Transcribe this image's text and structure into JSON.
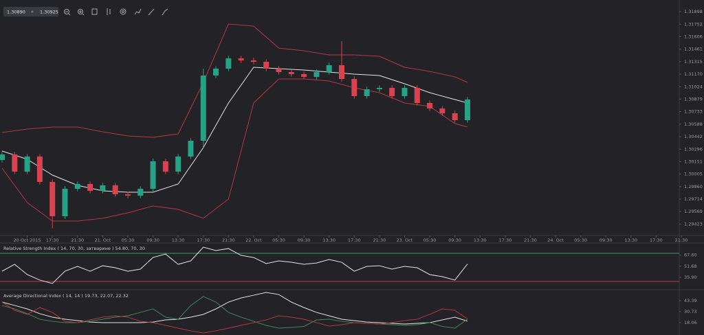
{
  "toolbar": {
    "prices": [
      "1.30890",
      "1.30925"
    ]
  },
  "chart_data": [
    {
      "type": "candlestick",
      "x": [
        0,
        2,
        4,
        6,
        8,
        10,
        12,
        14,
        16,
        18,
        20,
        22,
        24,
        26,
        28,
        30,
        32,
        34,
        36,
        38,
        40,
        42,
        44,
        46,
        48,
        50,
        52,
        54,
        56,
        58,
        60,
        62,
        64,
        66,
        68,
        70,
        72,
        74
      ],
      "open": [
        1.3017,
        1.30234,
        1.30034,
        1.3021,
        1.29914,
        1.29514,
        1.29834,
        1.2989,
        1.2981,
        1.29874,
        1.2977,
        1.29754,
        1.29834,
        1.30154,
        1.30034,
        1.3021,
        1.30394,
        1.31154,
        1.31234,
        1.31354,
        1.3133,
        1.31314,
        1.31234,
        1.31194,
        1.3117,
        1.31138,
        1.31194,
        1.31274,
        1.31114,
        1.30914,
        1.30994,
        1.3101,
        1.30914,
        1.3101,
        1.30834,
        1.3077,
        1.30714,
        1.30634
      ],
      "high": [
        1.30264,
        1.30264,
        1.3024,
        1.3024,
        1.29944,
        1.29864,
        1.2992,
        1.2992,
        1.29904,
        1.29904,
        1.298,
        1.29864,
        1.30184,
        1.30184,
        1.3024,
        1.30424,
        1.31234,
        1.31264,
        1.31384,
        1.31384,
        1.3136,
        1.31344,
        1.31264,
        1.31224,
        1.312,
        1.31224,
        1.31304,
        1.31554,
        1.31144,
        1.31024,
        1.3104,
        1.3104,
        1.3104,
        1.3104,
        1.30864,
        1.308,
        1.30744,
        1.30904
      ],
      "low": [
        1.3014,
        1.30004,
        1.30004,
        1.29884,
        1.29374,
        1.29484,
        1.29804,
        1.2978,
        1.2978,
        1.2974,
        1.29724,
        1.29724,
        1.29804,
        1.30004,
        1.30004,
        1.3018,
        1.30314,
        1.31124,
        1.31204,
        1.313,
        1.31284,
        1.31204,
        1.31164,
        1.3114,
        1.31108,
        1.31108,
        1.31164,
        1.31084,
        1.30884,
        1.30884,
        1.30964,
        1.30884,
        1.30884,
        1.30804,
        1.3074,
        1.30684,
        1.30604,
        1.30604
      ],
      "close": [
        1.30234,
        1.30034,
        1.3021,
        1.29914,
        1.29514,
        1.29834,
        1.2989,
        1.2981,
        1.29874,
        1.2977,
        1.29754,
        1.29834,
        1.30154,
        1.30034,
        1.3021,
        1.30394,
        1.31154,
        1.31234,
        1.31354,
        1.3133,
        1.31314,
        1.31234,
        1.31194,
        1.3117,
        1.31138,
        1.31194,
        1.31274,
        1.31114,
        1.30914,
        1.30994,
        1.3101,
        1.30914,
        1.3101,
        1.30834,
        1.3077,
        1.30714,
        1.30634,
        1.30874
      ],
      "up_color": "#26a386",
      "down_color": "#d9424f",
      "overlays": [
        {
          "color": "#b53a3f",
          "x": [
            0,
            4,
            8,
            12,
            16,
            20,
            24,
            28,
            32,
            36,
            40,
            44,
            48,
            52,
            56,
            60,
            64,
            68,
            72,
            74
          ],
          "values": [
            1.3049,
            1.3053,
            1.30554,
            1.30554,
            1.30498,
            1.3045,
            1.30434,
            1.30474,
            1.31074,
            1.31754,
            1.3173,
            1.31474,
            1.31442,
            1.31394,
            1.31394,
            1.31378,
            1.3125,
            1.31202,
            1.31138,
            1.31074
          ]
        },
        {
          "color": "#e6e6e6",
          "x": [
            0,
            4,
            8,
            12,
            16,
            20,
            24,
            28,
            32,
            36,
            40,
            44,
            48,
            52,
            56,
            60,
            64,
            68,
            72,
            74
          ],
          "values": [
            1.30274,
            1.30178,
            1.29994,
            1.29874,
            1.2981,
            1.29794,
            1.29794,
            1.2989,
            1.30314,
            1.30834,
            1.3125,
            1.31234,
            1.31218,
            1.31194,
            1.3117,
            1.31154,
            1.31058,
            1.30954,
            1.30874,
            1.30834
          ]
        },
        {
          "color": "#b53a3f",
          "x": [
            0,
            4,
            8,
            12,
            16,
            20,
            24,
            28,
            32,
            36,
            40,
            44,
            48,
            52,
            56,
            60,
            64,
            68,
            72,
            74
          ],
          "values": [
            1.30074,
            1.29674,
            1.29458,
            1.29458,
            1.2949,
            1.29554,
            1.29634,
            1.29594,
            1.2949,
            1.29714,
            1.30834,
            1.31114,
            1.31114,
            1.3109,
            1.3101,
            1.30954,
            1.30834,
            1.30794,
            1.30594,
            1.30554
          ]
        }
      ],
      "xlim": [
        0,
        108
      ],
      "ylim": [
        1.29274,
        1.32034
      ],
      "yticks": [
        1.31898,
        1.31752,
        1.31606,
        1.31461,
        1.31315,
        {
          "value": 1.3117,
          "label": "1.31170"
        },
        1.31024,
        1.30879,
        1.30733,
        1.30588,
        1.30442,
        1.30296,
        1.30151,
        1.30005,
        {
          "value": 1.2986,
          "label": "1.29860"
        },
        1.29714,
        1.29569,
        1.29423
      ],
      "xticks": [
        {
          "value": 4,
          "label": "20 Oct 2015"
        },
        {
          "value": 8,
          "label": "17:30"
        },
        {
          "value": 12,
          "label": "21:30"
        },
        {
          "value": 16,
          "label": "21. Oct"
        },
        {
          "value": 20,
          "label": "05:30"
        },
        {
          "value": 24,
          "label": "09:30"
        },
        {
          "value": 28,
          "label": "13:30"
        },
        {
          "value": 32,
          "label": "17:30"
        },
        {
          "value": 36,
          "label": "21:30"
        },
        {
          "value": 40,
          "label": "22. Oct"
        },
        {
          "value": 44,
          "label": "05:30"
        },
        {
          "value": 48,
          "label": "09:30"
        },
        {
          "value": 52,
          "label": "13:30"
        },
        {
          "value": 56,
          "label": "17:30"
        },
        {
          "value": 60,
          "label": "21:30"
        },
        {
          "value": 64,
          "label": "23. Oct"
        },
        {
          "value": 68,
          "label": "05:30"
        },
        {
          "value": 72,
          "label": "09:30"
        },
        {
          "value": 76,
          "label": "13:30"
        },
        {
          "value": 80,
          "label": "17:30"
        },
        {
          "value": 84,
          "label": "21:30"
        },
        {
          "value": 88,
          "label": "24. Oct"
        },
        {
          "value": 92,
          "label": "05:30"
        },
        {
          "value": 96,
          "label": "09:30"
        },
        {
          "value": 100,
          "label": "13:30"
        },
        {
          "value": 104,
          "label": "17:30"
        },
        {
          "value": 108,
          "label": "21:30"
        }
      ]
    },
    {
      "type": "line",
      "title": "Relative Strength Index ( 14, 70, 30, затварине ) 54.80, 70, 30",
      "x": [
        0,
        2,
        4,
        6,
        8,
        10,
        12,
        14,
        16,
        18,
        20,
        22,
        24,
        26,
        28,
        30,
        32,
        34,
        36,
        38,
        40,
        42,
        44,
        46,
        48,
        50,
        52,
        54,
        56,
        58,
        60,
        62,
        64,
        66,
        68,
        70,
        72,
        74
      ],
      "series": [
        {
          "color": "#e6e6e6",
          "values": [
            44.6,
            54.4,
            39.8,
            32.0,
            27.1,
            44.6,
            51.5,
            44.6,
            52.4,
            49.5,
            44.6,
            47.6,
            64.1,
            69.0,
            54.4,
            59.3,
            78.8,
            73.9,
            76.8,
            67.1,
            64.1,
            55.4,
            59.3,
            57.3,
            54.4,
            56.3,
            61.2,
            57.3,
            44.6,
            51.5,
            52.4,
            47.6,
            51.5,
            49.5,
            39.8,
            36.8,
            32.0,
            54.8
          ]
        }
      ],
      "levels": [
        {
          "value": 70,
          "color": "#3f9b57"
        },
        {
          "value": 30,
          "color": "#c0393f"
        }
      ],
      "xlim": [
        0,
        108
      ],
      "ylim": [
        18.3,
        83.7
      ],
      "yticks": [
        {
          "value": 67.6,
          "label": "67.60"
        },
        51.68,
        {
          "value": 35.9,
          "label": "35.90"
        }
      ]
    },
    {
      "type": "line",
      "title": "Average Directional Index ( 14, 14 ) 19.73, 22.07, 22.32",
      "x": [
        0,
        2,
        4,
        6,
        8,
        10,
        12,
        14,
        16,
        18,
        20,
        22,
        24,
        26,
        28,
        30,
        32,
        34,
        36,
        38,
        40,
        42,
        44,
        46,
        48,
        50,
        52,
        54,
        56,
        58,
        60,
        62,
        64,
        66,
        68,
        70,
        72,
        74
      ],
      "series": [
        {
          "color": "#e6e6e6",
          "values": [
            41.8,
            37.9,
            33.9,
            28.4,
            24.4,
            22.0,
            20.4,
            18.8,
            18.1,
            18.1,
            18.1,
            18.1,
            18.8,
            21.2,
            22.0,
            24.4,
            27.6,
            33.9,
            41.8,
            46.6,
            49.7,
            52.9,
            50.5,
            41.8,
            35.5,
            29.9,
            26.0,
            22.0,
            20.4,
            18.8,
            18.1,
            17.3,
            16.5,
            17.3,
            18.1,
            21.2,
            24.4,
            19.73
          ]
        },
        {
          "color": "#3f8a55",
          "values": [
            37.9,
            33.9,
            28.4,
            22.0,
            19.6,
            18.1,
            18.1,
            19.6,
            22.0,
            24.4,
            26.0,
            29.9,
            33.9,
            24.4,
            22.0,
            37.9,
            48.2,
            41.8,
            29.9,
            24.4,
            19.6,
            14.9,
            11.7,
            12.5,
            13.7,
            21.2,
            22.0,
            19.6,
            18.1,
            17.3,
            16.5,
            15.7,
            14.9,
            15.7,
            18.1,
            13.7,
            11.7,
            22.07
          ]
        },
        {
          "color": "#b53a3f",
          "values": [
            41.8,
            32.3,
            27.6,
            35.5,
            29.9,
            19.6,
            18.1,
            21.2,
            24.4,
            26.0,
            24.4,
            19.6,
            18.1,
            14.9,
            11.7,
            8.6,
            6.2,
            8.6,
            11.7,
            14.9,
            18.1,
            21.2,
            26.0,
            24.4,
            22.0,
            18.1,
            14.1,
            15.7,
            18.1,
            17.3,
            16.5,
            18.1,
            20.4,
            22.0,
            27.6,
            33.9,
            32.3,
            22.32
          ]
        }
      ],
      "xlim": [
        0,
        108
      ],
      "ylim": [
        3.8,
        54.5
      ],
      "yticks": [
        43.39,
        30.73,
        18.06
      ]
    }
  ]
}
